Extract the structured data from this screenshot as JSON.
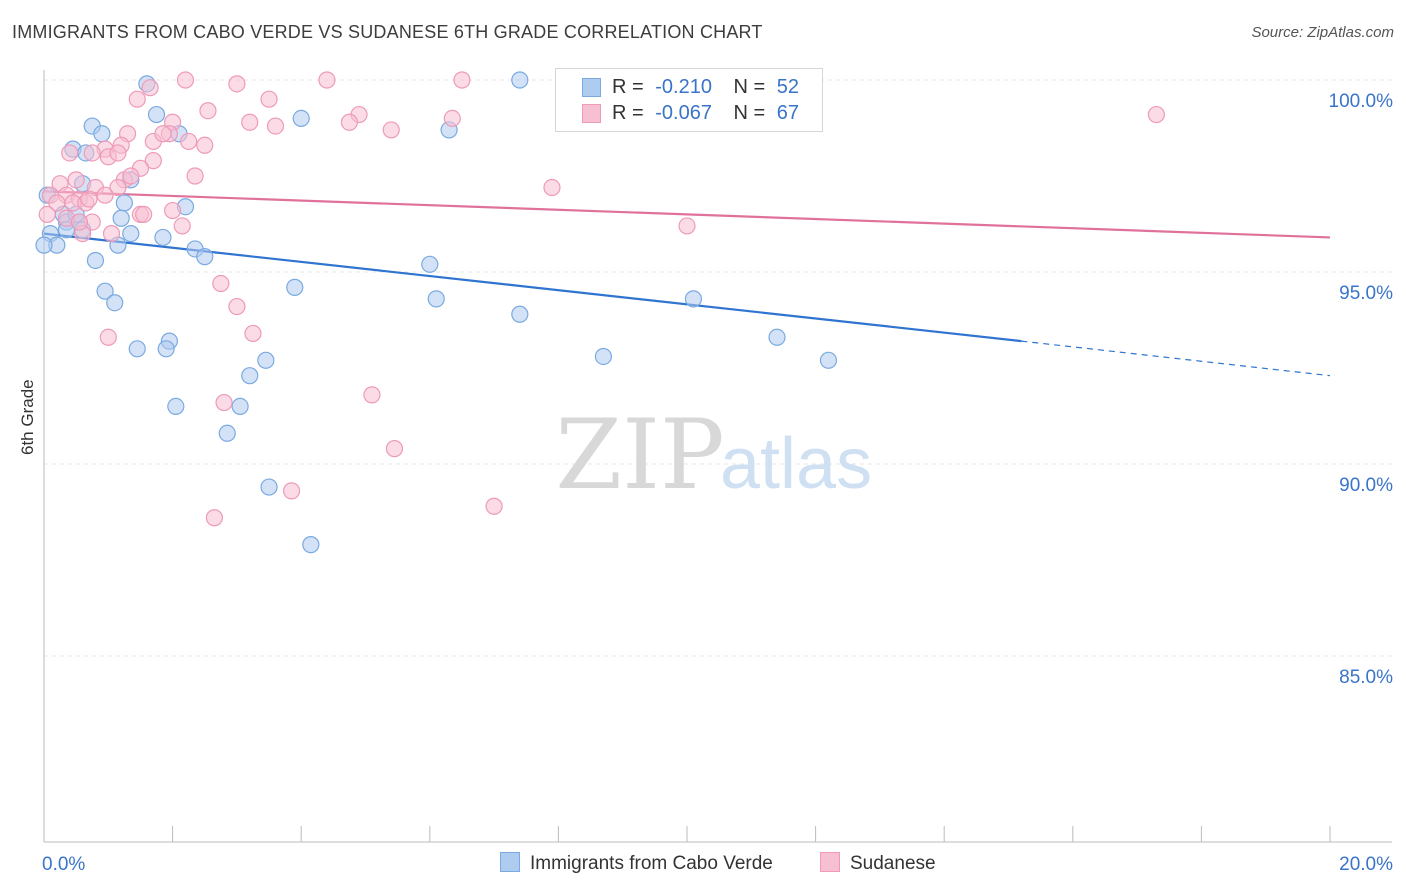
{
  "title": "IMMIGRANTS FROM CABO VERDE VS SUDANESE 6TH GRADE CORRELATION CHART",
  "source": "Source: ZipAtlas.com",
  "watermark": {
    "zip": "ZIP",
    "atlas": "atlas"
  },
  "colors": {
    "blue_fill": "#aecbf0",
    "blue_stroke": "#7aaae0",
    "blue_line": "#2f74d0",
    "pink_fill": "#f7bfd2",
    "pink_stroke": "#ee9ab8",
    "pink_line": "#e0719a",
    "axis_value": "#3a74c8",
    "grid": "#e4e4e4"
  },
  "legend": {
    "rows": [
      {
        "r_label": "R =",
        "r_value": "-0.210",
        "n_label": "N =",
        "n_value": "52",
        "series": "blue"
      },
      {
        "r_label": "R =",
        "r_value": "-0.067",
        "n_label": "N =",
        "n_value": "67",
        "series": "pink"
      }
    ]
  },
  "bottom_legend": [
    {
      "label": "Immigrants from Cabo Verde",
      "series": "blue"
    },
    {
      "label": "Sudanese",
      "series": "pink"
    }
  ],
  "chart_data": {
    "type": "scatter",
    "title": "IMMIGRANTS FROM CABO VERDE VS SUDANESE 6TH GRADE CORRELATION CHART",
    "xlabel": "",
    "ylabel": "6th Grade",
    "xlim": [
      0,
      20
    ],
    "ylim": [
      80.5,
      100.8
    ],
    "x_tick_labels": [
      {
        "value": 0,
        "label": "0.0%"
      },
      {
        "value": 20,
        "label": "20.0%"
      }
    ],
    "x_minor_ticks": [
      0,
      2,
      4,
      6,
      8,
      10,
      12,
      14,
      16,
      18,
      20
    ],
    "y_ticks": [
      {
        "value": 100,
        "label": "100.0%"
      },
      {
        "value": 95,
        "label": "95.0%"
      },
      {
        "value": 90,
        "label": "90.0%"
      },
      {
        "value": 85,
        "label": "85.0%"
      }
    ],
    "series": [
      {
        "name": "Immigrants from Cabo Verde",
        "color": "blue",
        "R": -0.21,
        "N": 52,
        "trend": {
          "x0": 0,
          "y0": 96.0,
          "x1": 15.2,
          "y1": 93.2,
          "dash_to_x": 20,
          "dash_to_y": 92.3
        },
        "points": [
          [
            1.6,
            99.9
          ],
          [
            7.4,
            100.0
          ],
          [
            8.6,
            100.0
          ],
          [
            1.75,
            99.1
          ],
          [
            4.0,
            99.0
          ],
          [
            0.75,
            98.8
          ],
          [
            2.1,
            98.6
          ],
          [
            0.9,
            98.6
          ],
          [
            6.3,
            98.7
          ],
          [
            0.45,
            98.2
          ],
          [
            0.65,
            98.1
          ],
          [
            0.6,
            97.3
          ],
          [
            1.35,
            97.4
          ],
          [
            0.05,
            97.0
          ],
          [
            1.25,
            96.8
          ],
          [
            2.2,
            96.7
          ],
          [
            0.3,
            96.5
          ],
          [
            0.35,
            96.3
          ],
          [
            1.2,
            96.4
          ],
          [
            0.55,
            96.3
          ],
          [
            0.1,
            96.0
          ],
          [
            0.35,
            96.1
          ],
          [
            0.6,
            96.1
          ],
          [
            1.35,
            96.0
          ],
          [
            1.85,
            95.9
          ],
          [
            0.2,
            95.7
          ],
          [
            1.15,
            95.7
          ],
          [
            2.35,
            95.6
          ],
          [
            0.8,
            95.3
          ],
          [
            2.5,
            95.4
          ],
          [
            6.0,
            95.2
          ],
          [
            0.95,
            94.5
          ],
          [
            1.1,
            94.2
          ],
          [
            3.9,
            94.6
          ],
          [
            6.1,
            94.3
          ],
          [
            7.4,
            93.9
          ],
          [
            10.1,
            94.3
          ],
          [
            1.45,
            93.0
          ],
          [
            1.95,
            93.2
          ],
          [
            1.9,
            93.0
          ],
          [
            3.45,
            92.7
          ],
          [
            8.7,
            92.8
          ],
          [
            11.4,
            93.3
          ],
          [
            12.2,
            92.7
          ],
          [
            3.2,
            92.3
          ],
          [
            2.05,
            91.5
          ],
          [
            3.05,
            91.5
          ],
          [
            2.85,
            90.8
          ],
          [
            3.5,
            89.4
          ],
          [
            4.15,
            87.9
          ],
          [
            0.0,
            95.7
          ],
          [
            0.5,
            96.5
          ]
        ]
      },
      {
        "name": "Sudanese",
        "color": "pink",
        "R": -0.067,
        "N": 67,
        "trend": {
          "x0": 0,
          "y0": 97.1,
          "x1": 20,
          "y1": 95.9
        },
        "points": [
          [
            2.2,
            100.0
          ],
          [
            3.0,
            99.9
          ],
          [
            4.4,
            100.0
          ],
          [
            6.5,
            100.0
          ],
          [
            1.45,
            99.5
          ],
          [
            1.65,
            99.8
          ],
          [
            3.5,
            99.5
          ],
          [
            2.55,
            99.2
          ],
          [
            4.9,
            99.1
          ],
          [
            2.0,
            98.9
          ],
          [
            3.2,
            98.9
          ],
          [
            3.6,
            98.8
          ],
          [
            4.75,
            98.9
          ],
          [
            6.35,
            99.0
          ],
          [
            17.3,
            99.1
          ],
          [
            1.3,
            98.6
          ],
          [
            1.7,
            98.4
          ],
          [
            1.95,
            98.6
          ],
          [
            2.25,
            98.4
          ],
          [
            2.5,
            98.3
          ],
          [
            5.4,
            98.7
          ],
          [
            1.2,
            98.3
          ],
          [
            0.95,
            98.2
          ],
          [
            0.75,
            98.1
          ],
          [
            0.4,
            98.1
          ],
          [
            1.0,
            98.0
          ],
          [
            1.15,
            98.1
          ],
          [
            1.7,
            97.9
          ],
          [
            1.5,
            97.7
          ],
          [
            1.25,
            97.4
          ],
          [
            1.35,
            97.5
          ],
          [
            2.35,
            97.5
          ],
          [
            0.25,
            97.3
          ],
          [
            0.5,
            97.4
          ],
          [
            0.8,
            97.2
          ],
          [
            1.15,
            97.2
          ],
          [
            7.9,
            97.2
          ],
          [
            0.1,
            97.0
          ],
          [
            0.35,
            97.0
          ],
          [
            0.55,
            96.9
          ],
          [
            0.95,
            97.0
          ],
          [
            0.2,
            96.8
          ],
          [
            0.45,
            96.8
          ],
          [
            0.65,
            96.8
          ],
          [
            0.7,
            96.9
          ],
          [
            2.0,
            96.6
          ],
          [
            0.05,
            96.5
          ],
          [
            0.35,
            96.4
          ],
          [
            0.75,
            96.3
          ],
          [
            1.5,
            96.5
          ],
          [
            1.55,
            96.5
          ],
          [
            0.6,
            96.0
          ],
          [
            1.05,
            96.0
          ],
          [
            2.15,
            96.2
          ],
          [
            10.0,
            96.2
          ],
          [
            2.75,
            94.7
          ],
          [
            3.0,
            94.1
          ],
          [
            1.0,
            93.3
          ],
          [
            3.25,
            93.4
          ],
          [
            5.1,
            91.8
          ],
          [
            2.8,
            91.6
          ],
          [
            5.45,
            90.4
          ],
          [
            3.85,
            89.3
          ],
          [
            7.0,
            88.9
          ],
          [
            2.65,
            88.6
          ],
          [
            0.55,
            96.3
          ],
          [
            1.85,
            98.6
          ]
        ]
      }
    ]
  }
}
